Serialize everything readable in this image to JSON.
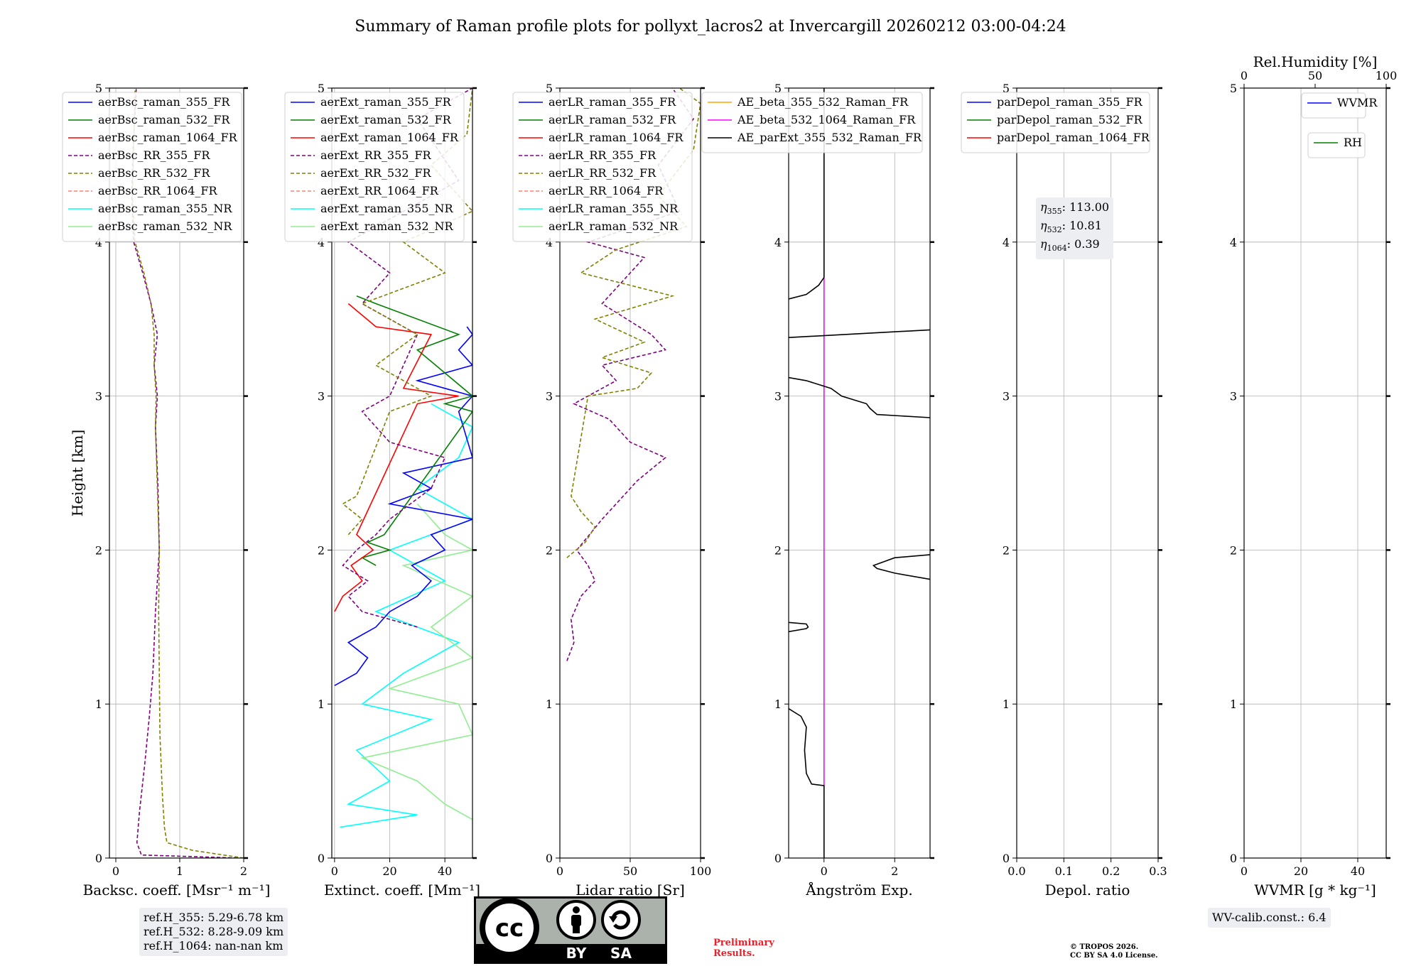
{
  "title": "Summary of Raman profile plots for pollyxt_lacros2 at Invercargill 20260212 03:00-04:24",
  "colors": {
    "blue": "#0000ff",
    "green": "#008000",
    "red": "#ff0000",
    "purple": "#800080",
    "olive": "#808000",
    "salmon": "#fa8072",
    "cyan": "#00ffff",
    "lightgreen": "#90ee90",
    "orange": "#ffa500",
    "magenta": "#ff00ff",
    "black": "#000000"
  },
  "chart_data": [
    {
      "type": "line",
      "id": "bsc",
      "xlabel": "Backsc. coeff. [Msr⁻¹ m⁻¹]",
      "ylabel": "Height [km]",
      "xlim": [
        -0.1,
        2.0
      ],
      "ylim": [
        0,
        5
      ],
      "xticks": [
        0,
        1,
        2
      ],
      "xtick_labels": [
        "0",
        "1",
        "2"
      ],
      "yticks": [
        0,
        1,
        2,
        3,
        4,
        5
      ],
      "ytick_labels": [
        "0",
        "1",
        "2",
        "3",
        "4",
        "5"
      ],
      "grid": true,
      "legend": [
        "aerBsc_raman_355_FR",
        "aerBsc_raman_532_FR",
        "aerBsc_raman_1064_FR",
        "aerBsc_RR_355_FR",
        "aerBsc_RR_532_FR",
        "aerBsc_RR_1064_FR",
        "aerBsc_raman_355_NR",
        "aerBsc_raman_532_NR"
      ],
      "legend_position": "top-left",
      "series": [
        {
          "name": "aerBsc_RR_355_FR",
          "h": [
            0.0,
            0.02,
            0.1,
            0.3,
            0.6,
            0.9,
            1.2,
            1.6,
            2.0,
            2.4,
            2.8,
            3.0,
            3.2,
            3.4,
            3.6,
            3.8,
            4.0,
            4.3,
            4.6,
            5.0
          ],
          "v": [
            1.9,
            0.4,
            0.33,
            0.37,
            0.45,
            0.52,
            0.58,
            0.62,
            0.68,
            0.66,
            0.62,
            0.65,
            0.6,
            0.65,
            0.55,
            0.42,
            0.28,
            0.25,
            0.27,
            0.32
          ]
        },
        {
          "name": "aerBsc_RR_532_FR",
          "h": [
            0.0,
            0.05,
            0.1,
            0.2,
            0.4,
            0.8,
            1.2,
            1.6,
            2.0,
            2.4,
            2.8,
            3.0,
            3.2,
            3.4,
            3.6,
            3.8,
            4.0,
            4.3,
            4.6,
            5.0
          ],
          "v": [
            2.0,
            1.2,
            0.8,
            0.76,
            0.73,
            0.69,
            0.68,
            0.67,
            0.68,
            0.65,
            0.62,
            0.63,
            0.6,
            0.6,
            0.55,
            0.44,
            0.3,
            0.26,
            0.28,
            0.3
          ]
        }
      ],
      "annotation": [
        "ref.H_355: 5.29-6.78 km",
        "ref.H_532: 8.28-9.09 km",
        "ref.H_1064: nan-nan km"
      ]
    },
    {
      "type": "line",
      "id": "ext",
      "xlabel": "Extinct. coeff. [Mm⁻¹]",
      "xlim": [
        -1,
        50
      ],
      "ylim": [
        0,
        5
      ],
      "xticks": [
        0,
        20,
        40
      ],
      "xtick_labels": [
        "0",
        "20",
        "40"
      ],
      "yticks": [
        0,
        1,
        2,
        3,
        4,
        5
      ],
      "ytick_labels": [
        "0",
        "1",
        "2",
        "3",
        "4",
        "5"
      ],
      "grid": true,
      "legend": [
        "aerExt_raman_355_FR",
        "aerExt_raman_532_FR",
        "aerExt_raman_1064_FR",
        "aerExt_RR_355_FR",
        "aerExt_RR_532_FR",
        "aerExt_RR_1064_FR",
        "aerExt_raman_355_NR",
        "aerExt_raman_532_NR"
      ],
      "legend_position": "top-left",
      "series": [
        {
          "name": "aerExt_raman_355_NR",
          "h": [
            0.2,
            0.28,
            0.35,
            0.5,
            0.7,
            0.9,
            1.0,
            1.2,
            1.4,
            1.6,
            1.8,
            2.0,
            2.2,
            2.4,
            2.6,
            2.8,
            2.95
          ],
          "v": [
            2,
            30,
            5,
            20,
            8,
            35,
            10,
            25,
            45,
            15,
            40,
            20,
            50,
            30,
            45,
            50,
            35
          ]
        },
        {
          "name": "aerExt_raman_532_NR",
          "h": [
            0.25,
            0.35,
            0.5,
            0.65,
            0.8,
            1.0,
            1.1,
            1.3,
            1.5,
            1.7,
            1.9,
            2.0,
            2.1,
            2.3
          ],
          "v": [
            50,
            40,
            30,
            10,
            50,
            45,
            20,
            50,
            35,
            50,
            25,
            50,
            40,
            30
          ]
        },
        {
          "name": "aerExt_raman_355_FR",
          "h": [
            1.12,
            1.2,
            1.3,
            1.4,
            1.5,
            1.6,
            1.7,
            1.8,
            1.9,
            2.0,
            2.1,
            2.2,
            2.3,
            2.4,
            2.5,
            2.6,
            2.9,
            3.0,
            3.1,
            3.2,
            3.3,
            3.4,
            3.45
          ],
          "v": [
            0,
            8,
            12,
            5,
            15,
            20,
            30,
            35,
            28,
            40,
            35,
            50,
            20,
            35,
            25,
            50,
            45,
            50,
            30,
            50,
            45,
            50,
            48
          ]
        },
        {
          "name": "aerExt_raman_532_FR",
          "h": [
            1.9,
            1.95,
            2.0,
            2.05,
            2.1,
            2.9,
            2.95,
            3.0,
            3.3,
            3.4,
            3.6,
            3.65
          ],
          "v": [
            15,
            10,
            20,
            12,
            18,
            50,
            40,
            50,
            30,
            45,
            15,
            8
          ]
        },
        {
          "name": "aerExt_raman_1064_FR",
          "h": [
            1.6,
            1.7,
            1.8,
            1.9,
            2.0,
            2.1,
            2.95,
            3.0,
            3.05,
            3.4,
            3.45,
            3.6
          ],
          "v": [
            0,
            3,
            10,
            6,
            14,
            8,
            30,
            45,
            25,
            35,
            15,
            5
          ]
        },
        {
          "name": "aerExt_RR_355_FR",
          "h": [
            1.5,
            1.6,
            1.7,
            1.8,
            1.9,
            2.0,
            2.1,
            2.2,
            2.4,
            2.6,
            2.7,
            2.8,
            2.9,
            3.0,
            3.2,
            3.4,
            3.6,
            3.8,
            4.0,
            4.4,
            4.8,
            5.0
          ],
          "v": [
            30,
            10,
            5,
            12,
            3,
            8,
            15,
            20,
            35,
            40,
            20,
            15,
            10,
            20,
            25,
            30,
            10,
            20,
            5,
            45,
            30,
            50
          ]
        },
        {
          "name": "aerExt_RR_532_FR",
          "h": [
            2.1,
            2.2,
            2.3,
            2.35,
            2.9,
            3.0,
            3.2,
            3.4,
            3.6,
            3.8,
            4.0,
            4.2,
            4.5,
            4.7,
            5.0
          ],
          "v": [
            5,
            10,
            3,
            8,
            20,
            35,
            15,
            30,
            10,
            40,
            25,
            50,
            35,
            48,
            50
          ]
        }
      ]
    },
    {
      "type": "line",
      "id": "lr",
      "xlabel": "Lidar ratio [Sr]",
      "xlim": [
        0,
        100
      ],
      "ylim": [
        0,
        5
      ],
      "xticks": [
        0,
        50,
        100
      ],
      "xtick_labels": [
        "0",
        "50",
        "100"
      ],
      "yticks": [
        0,
        1,
        2,
        3,
        4,
        5
      ],
      "ytick_labels": [
        "0",
        "1",
        "2",
        "3",
        "4",
        "5"
      ],
      "grid": true,
      "legend": [
        "aerLR_raman_355_FR",
        "aerLR_raman_532_FR",
        "aerLR_raman_1064_FR",
        "aerLR_RR_355_FR",
        "aerLR_RR_532_FR",
        "aerLR_RR_1064_FR",
        "aerLR_raman_355_NR",
        "aerLR_raman_532_NR"
      ],
      "legend_position": "top-left",
      "series": [
        {
          "name": "aerLR_RR_355_FR",
          "h": [
            1.28,
            1.4,
            1.55,
            1.7,
            1.8,
            1.9,
            2.0,
            2.2,
            2.3,
            2.45,
            2.6,
            2.7,
            2.85,
            2.95,
            3.1,
            3.2,
            3.3,
            3.4,
            3.6,
            3.75,
            3.9,
            4.0,
            4.2,
            4.5,
            4.8,
            5.0
          ],
          "v": [
            5,
            10,
            8,
            15,
            25,
            20,
            12,
            30,
            40,
            55,
            75,
            50,
            35,
            10,
            40,
            30,
            75,
            65,
            30,
            45,
            60,
            20,
            85,
            70,
            95,
            80
          ]
        },
        {
          "name": "aerLR_RR_532_FR",
          "h": [
            1.95,
            2.05,
            2.15,
            2.25,
            2.35,
            3.0,
            3.05,
            3.15,
            3.25,
            3.35,
            3.5,
            3.65,
            3.8,
            3.95,
            4.1,
            4.3,
            4.6,
            4.9,
            5.0
          ],
          "v": [
            5,
            18,
            25,
            15,
            8,
            20,
            55,
            65,
            30,
            60,
            25,
            80,
            15,
            40,
            90,
            70,
            95,
            100,
            85
          ]
        }
      ]
    },
    {
      "type": "line",
      "id": "ae",
      "xlabel": "Ångström Exp.",
      "xlim": [
        -1,
        3
      ],
      "ylim": [
        0,
        5
      ],
      "xticks": [
        0,
        2
      ],
      "xtick_labels": [
        "0",
        "2"
      ],
      "yticks": [
        0,
        1,
        2,
        3,
        4,
        5
      ],
      "ytick_labels": [
        "0",
        "1",
        "2",
        "3",
        "4",
        "5"
      ],
      "grid": true,
      "legend": [
        "AE_beta_355_532_Raman_FR",
        "AE_beta_532_1064_Raman_FR",
        "AE_parExt_355_532_Raman_FR"
      ],
      "legend_position": "top-left",
      "series": [
        {
          "name": "AE_beta_532_1064_Raman_FR",
          "h": [
            0.47,
            3.77
          ],
          "v": [
            0.0,
            0.0
          ]
        },
        {
          "name": "AE_parExt_355_532_Raman_FR",
          "h": [
            0.0,
            0.47,
            0.48,
            0.55,
            0.7,
            0.85,
            0.92,
            0.97
          ],
          "v": [
            0.0,
            0.0,
            -0.35,
            -0.5,
            -0.55,
            -0.5,
            -0.65,
            -1.0
          ]
        },
        {
          "name": "AE_parExt_355_532_Raman_FR (1.5km)",
          "h": [
            1.47,
            1.49,
            1.5,
            1.52,
            1.53
          ],
          "v": [
            -1.0,
            -0.5,
            -0.45,
            -0.5,
            -1.0
          ]
        },
        {
          "name": "AE_parExt_355_532_Raman_FR (1.9km)",
          "h": [
            1.81,
            1.85,
            1.88,
            1.9,
            1.95,
            1.97
          ],
          "v": [
            3.0,
            2.0,
            1.5,
            1.4,
            2.0,
            3.0
          ]
        },
        {
          "name": "AE_parExt_355_532_Raman_FR (3km)",
          "h": [
            2.86,
            2.88,
            2.92,
            2.95,
            3.0,
            3.05,
            3.1,
            3.12
          ],
          "v": [
            3.0,
            1.5,
            1.3,
            1.2,
            0.5,
            0.2,
            -0.5,
            -1.0
          ]
        },
        {
          "name": "AE_parExt_355_532_Raman_FR (3.4km)",
          "h": [
            3.38,
            3.43
          ],
          "v": [
            -1.0,
            3.0
          ]
        },
        {
          "name": "AE_parExt_355_532_Raman_FR (3.7km)",
          "h": [
            3.63,
            3.66,
            3.72,
            3.77
          ],
          "v": [
            -1.0,
            -0.5,
            -0.15,
            0.0
          ]
        },
        {
          "name": "AE_parExt_355_532_Raman_FR (top)",
          "h": [
            3.77,
            5.0
          ],
          "v": [
            0.0,
            0.0
          ]
        }
      ]
    },
    {
      "type": "line",
      "id": "depol",
      "xlabel": "Depol. ratio",
      "xlim": [
        0.0,
        0.3
      ],
      "ylim": [
        0,
        5
      ],
      "xticks": [
        0.0,
        0.1,
        0.2,
        0.3
      ],
      "xtick_labels": [
        "0.0",
        "0.1",
        "0.2",
        "0.3"
      ],
      "yticks": [
        0,
        1,
        2,
        3,
        4,
        5
      ],
      "ytick_labels": [
        "0",
        "1",
        "2",
        "3",
        "4",
        "5"
      ],
      "grid": true,
      "legend": [
        "parDepol_raman_355_FR",
        "parDepol_raman_532_FR",
        "parDepol_raman_1064_FR"
      ],
      "legend_position": "top-left",
      "series": [],
      "annotation": {
        "eta355": "113.00",
        "eta532": "10.81",
        "eta1064": "0.39"
      }
    },
    {
      "type": "line",
      "id": "wv",
      "xlabel": "WVMR [g * kg⁻¹]",
      "x2label": "Rel.Humidity [%]",
      "xlim": [
        0,
        50
      ],
      "x2lim": [
        0,
        100
      ],
      "ylim": [
        0,
        5
      ],
      "xticks": [
        0,
        20,
        40
      ],
      "xtick_labels": [
        "0",
        "20",
        "40"
      ],
      "x2ticks": [
        0,
        50,
        100
      ],
      "x2tick_labels": [
        "0",
        "50",
        "100"
      ],
      "yticks": [
        0,
        1,
        2,
        3,
        4,
        5
      ],
      "ytick_labels": [
        "0",
        "1",
        "2",
        "3",
        "4",
        "5"
      ],
      "grid": true,
      "legend": [
        "WVMR",
        "RH"
      ],
      "legend_position": "top-right",
      "series": [],
      "annotation": "WV-calib.const.: 6.4"
    }
  ],
  "footer": {
    "cc_main": "cc",
    "cc_by": "BY",
    "cc_sa": "SA",
    "preliminary": [
      "Preliminary",
      "Results."
    ],
    "copyright": [
      "© TROPOS 2026.",
      "CC BY SA 4.0 License."
    ]
  }
}
